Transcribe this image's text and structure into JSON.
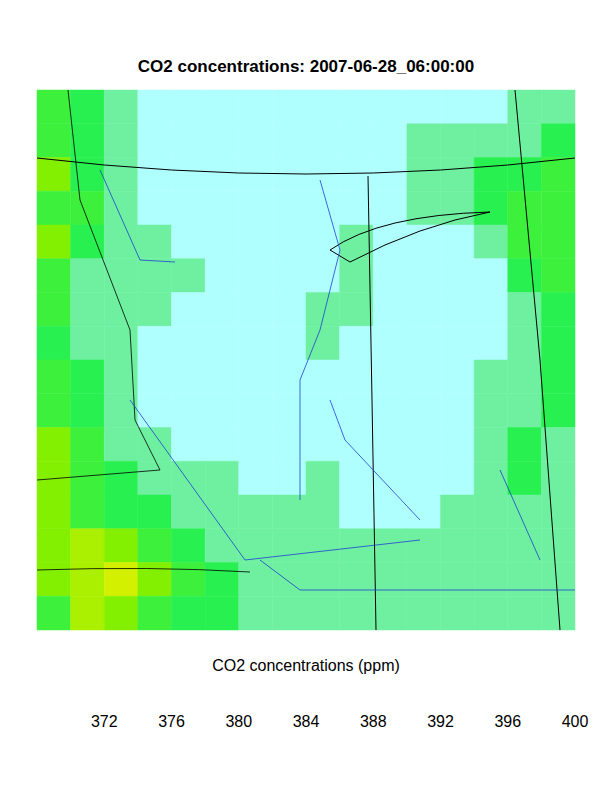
{
  "chart_data": {
    "type": "heatmap",
    "title": "CO2 concentrations: 2007-06-28_06:00:00",
    "tick_labels": false,
    "cells": [
      [
        384,
        382,
        380,
        379,
        379,
        379,
        379,
        379,
        379,
        379,
        379,
        379,
        379,
        379,
        381,
        381
      ],
      [
        385,
        382,
        381,
        379,
        379,
        379,
        379,
        379,
        379,
        379,
        379,
        381,
        381,
        381,
        381,
        382
      ],
      [
        386,
        383,
        381,
        379,
        378,
        379,
        379,
        379,
        379,
        379,
        379,
        381,
        381,
        382,
        383,
        384
      ],
      [
        385,
        384,
        381,
        379,
        379,
        379,
        379,
        379,
        378,
        379,
        379,
        381,
        381,
        383,
        384,
        385
      ],
      [
        386,
        383,
        381,
        381,
        379,
        379,
        379,
        379,
        379,
        381,
        379,
        379,
        379,
        381,
        384,
        385
      ],
      [
        385,
        381,
        381,
        381,
        381,
        379,
        379,
        379,
        379,
        381,
        379,
        379,
        379,
        379,
        383,
        384
      ],
      [
        384,
        381,
        381,
        381,
        379,
        379,
        379,
        379,
        381,
        381,
        379,
        379,
        379,
        379,
        381,
        383
      ],
      [
        383,
        381,
        381,
        379,
        379,
        378,
        379,
        379,
        381,
        379,
        379,
        379,
        379,
        379,
        381,
        383
      ],
      [
        384,
        382,
        381,
        379,
        379,
        379,
        379,
        379,
        379,
        379,
        379,
        379,
        379,
        381,
        381,
        382
      ],
      [
        385,
        383,
        381,
        379,
        379,
        379,
        379,
        379,
        379,
        379,
        379,
        379,
        379,
        381,
        381,
        382
      ],
      [
        386,
        384,
        381,
        381,
        379,
        379,
        379,
        379,
        379,
        379,
        379,
        379,
        379,
        381,
        383,
        381
      ],
      [
        387,
        385,
        383,
        381,
        381,
        381,
        379,
        379,
        381,
        379,
        379,
        379,
        379,
        381,
        383,
        381
      ],
      [
        386,
        384,
        383,
        382,
        381,
        381,
        381,
        381,
        381,
        379,
        379,
        379,
        381,
        381,
        381,
        381
      ],
      [
        387,
        388,
        386,
        384,
        382,
        381,
        381,
        381,
        381,
        381,
        381,
        381,
        381,
        381,
        381,
        381
      ],
      [
        386,
        389,
        391,
        386,
        384,
        382,
        381,
        381,
        381,
        381,
        381,
        381,
        381,
        381,
        381,
        381
      ],
      [
        385,
        388,
        387,
        385,
        383,
        382,
        381,
        381,
        381,
        381,
        381,
        381,
        381,
        381,
        381,
        381
      ]
    ],
    "colorbar": {
      "label": "CO2 concentrations (ppm)",
      "range": [
        368,
        400
      ],
      "ticks": [
        372,
        376,
        380,
        384,
        388,
        392,
        396,
        400
      ],
      "colors": [
        "#1414ff",
        "#0a6eff",
        "#00c8ff",
        "#00ffff",
        "#78ffff",
        "#b0ffff",
        "#6ef0a0",
        "#28f050",
        "#3cf03c",
        "#82f000",
        "#aaf000",
        "#d2f000",
        "#ffff00",
        "#ffe600",
        "#ffc800",
        "#ff9600"
      ]
    }
  }
}
